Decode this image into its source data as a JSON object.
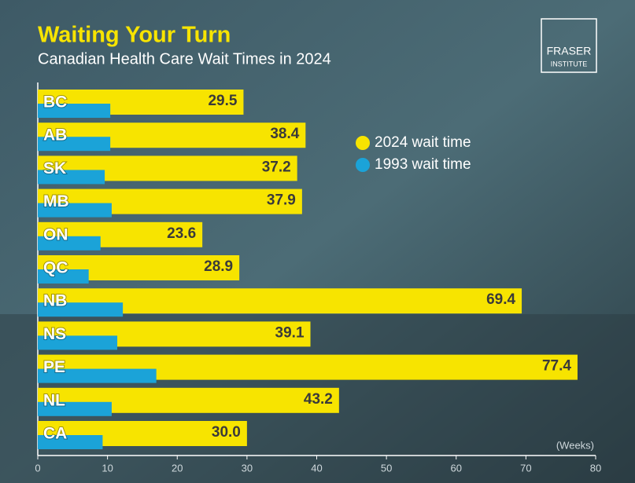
{
  "chart_data": {
    "type": "bar",
    "orientation": "horizontal",
    "title": "Waiting Your Turn",
    "subtitle": "Canadian Health Care Wait Times in 2024",
    "categories": [
      "BC",
      "AB",
      "SK",
      "MB",
      "ON",
      "QC",
      "NB",
      "NS",
      "PE",
      "NL",
      "CA"
    ],
    "series": [
      {
        "name": "2024 wait time",
        "color": "#f7e400",
        "values": [
          29.5,
          38.4,
          37.2,
          37.9,
          23.6,
          28.9,
          69.4,
          39.1,
          77.4,
          43.2,
          30.0
        ],
        "value_labels": [
          "29.5",
          "38.4",
          "37.2",
          "37.9",
          "23.6",
          "28.9",
          "69.4",
          "39.1",
          "77.4",
          "43.2",
          "30.0"
        ]
      },
      {
        "name": "1993 wait time",
        "color": "#1ba3d8",
        "values": [
          10.4,
          10.4,
          9.6,
          10.6,
          9.0,
          7.3,
          12.2,
          11.4,
          17.0,
          10.6,
          9.3
        ]
      }
    ],
    "xlim": [
      0,
      80
    ],
    "xticks": [
      0,
      10,
      20,
      30,
      40,
      50,
      60,
      70,
      80
    ],
    "xlabel": "(Weeks)",
    "legend": "upper-right"
  },
  "logo": {
    "line1": "FRASER",
    "line2": "INSTITUTE"
  }
}
